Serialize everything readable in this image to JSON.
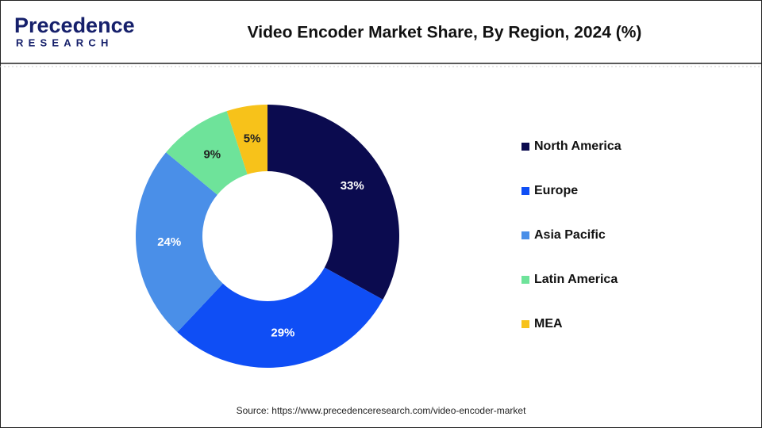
{
  "brand": {
    "name": "Precedence",
    "tagline": "RESEARCH"
  },
  "chart_data": {
    "type": "donut",
    "title": "Video Encoder Market Share, By Region, 2024 (%)",
    "categories": [
      "North America",
      "Europe",
      "Asia Pacific",
      "Latin America",
      "MEA"
    ],
    "values": [
      33,
      29,
      24,
      9,
      5
    ],
    "value_labels": [
      "33%",
      "29%",
      "24%",
      "9%",
      "5%"
    ],
    "colors": [
      "#0b0b4f",
      "#0f4ef5",
      "#4a8fe8",
      "#6ee39a",
      "#f7c21a"
    ],
    "legend": "right",
    "source": "Source: https://www.precedenceresearch.com/video-encoder-market"
  }
}
